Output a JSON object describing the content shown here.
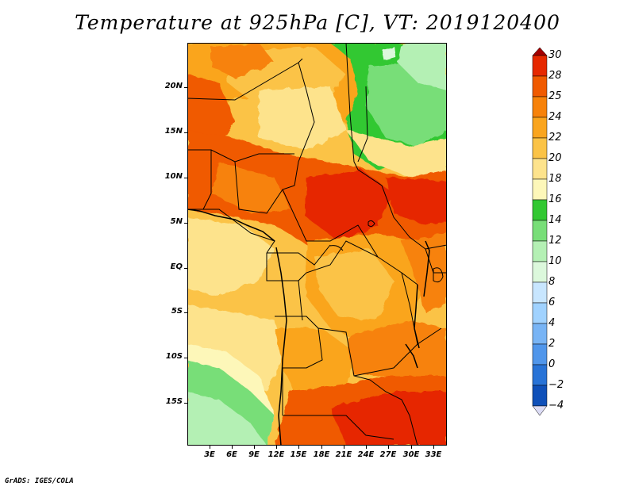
{
  "chart_data": {
    "type": "heatmap",
    "title": "Temperature at 925hPa [C], VT: 2019120400",
    "variable_units": "C",
    "x_ticks": [
      "3E",
      "6E",
      "9E",
      "12E",
      "15E",
      "18E",
      "21E",
      "24E",
      "27E",
      "30E",
      "33E"
    ],
    "x_tick_values": [
      3,
      6,
      9,
      12,
      15,
      18,
      21,
      24,
      27,
      30,
      33
    ],
    "y_ticks": [
      "20N",
      "15N",
      "10N",
      "5N",
      "EQ",
      "5S",
      "10S",
      "15S"
    ],
    "y_tick_values": [
      20,
      15,
      10,
      5,
      0,
      -5,
      -10,
      -15
    ],
    "lon_range": [
      0,
      34.5
    ],
    "lat_range": [
      -19.7,
      24.5
    ],
    "colorbar": {
      "levels": [
        30,
        28,
        25,
        24,
        22,
        20,
        18,
        16,
        14,
        12,
        10,
        8,
        6,
        4,
        2,
        0,
        -2,
        -4
      ],
      "level_labels": [
        "30",
        "28",
        "25",
        "24",
        "22",
        "20",
        "18",
        "16",
        "14",
        "12",
        "10",
        "8",
        "6",
        "4",
        "2",
        "0",
        "−2",
        "−4"
      ],
      "colors": [
        "#a50000",
        "#e62800",
        "#f05a00",
        "#f7820a",
        "#faa51e",
        "#fbc346",
        "#fde38c",
        "#fdf7b9",
        "#32c832",
        "#78de78",
        "#b4f0b4",
        "#dcf8dc",
        "#c8e6ff",
        "#a0d2ff",
        "#78b4f5",
        "#5096eb",
        "#2873d7",
        "#0f50b9",
        "#1e2d8c",
        "#0a0a5a",
        "#dcdcf5"
      ]
    },
    "regions": [
      {
        "area": "northern Sahara (north-east)",
        "approx_temp_C": "14-18"
      },
      {
        "area": "Sahel band 10-15N",
        "approx_temp_C": "25-28"
      },
      {
        "area": "central Congo basin",
        "approx_temp_C": "22-24"
      },
      {
        "area": "Angola / south-west coast",
        "approx_temp_C": "16-20"
      },
      {
        "area": "Zambia / Mozambique south-east",
        "approx_temp_C": "25-28"
      }
    ]
  },
  "credit": "GrADS: IGES/COLA"
}
